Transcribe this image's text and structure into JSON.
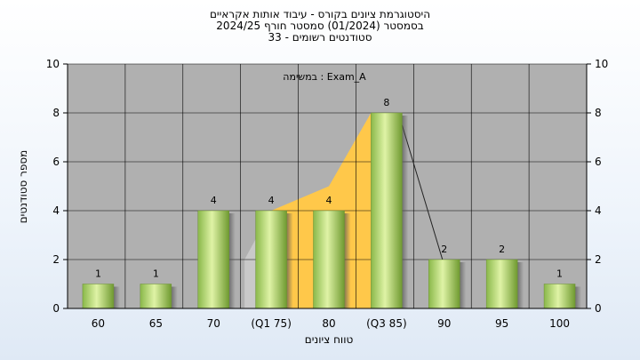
{
  "chart_data": {
    "type": "bar",
    "title_lines": [
      "היסטוגרמת ציונים בקורס - עיבוד אותות אקראיים",
      "בסמסטר  (01/2024)  סמסטר חורף 2024/25",
      "סטודנטים רשומים - 33"
    ],
    "annotation": "במשימה : Exam_A",
    "xlabel": "טווח ציונים",
    "ylabel": "מספר סטודנטים",
    "categories": [
      "60",
      "65",
      "70",
      "(Q1 75)",
      "80",
      "(Q3 85)",
      "90",
      "95",
      "100"
    ],
    "values": [
      1,
      1,
      4,
      4,
      4,
      8,
      2,
      2,
      1
    ],
    "data_labels": [
      "1",
      "1",
      "4",
      "4",
      "4",
      "8",
      "2",
      "2",
      "1"
    ],
    "ylim": [
      0,
      10
    ],
    "yticks": [
      0,
      2,
      4,
      6,
      8,
      10
    ],
    "grid": true,
    "colors": {
      "bar_light": "#d9ef9a",
      "bar_dark": "#7aa63a",
      "plot_bg": "#b0b0b0",
      "iqr_area": "#ffc84a",
      "gray_area": "#c9c9c9",
      "grid": "#000000"
    }
  }
}
